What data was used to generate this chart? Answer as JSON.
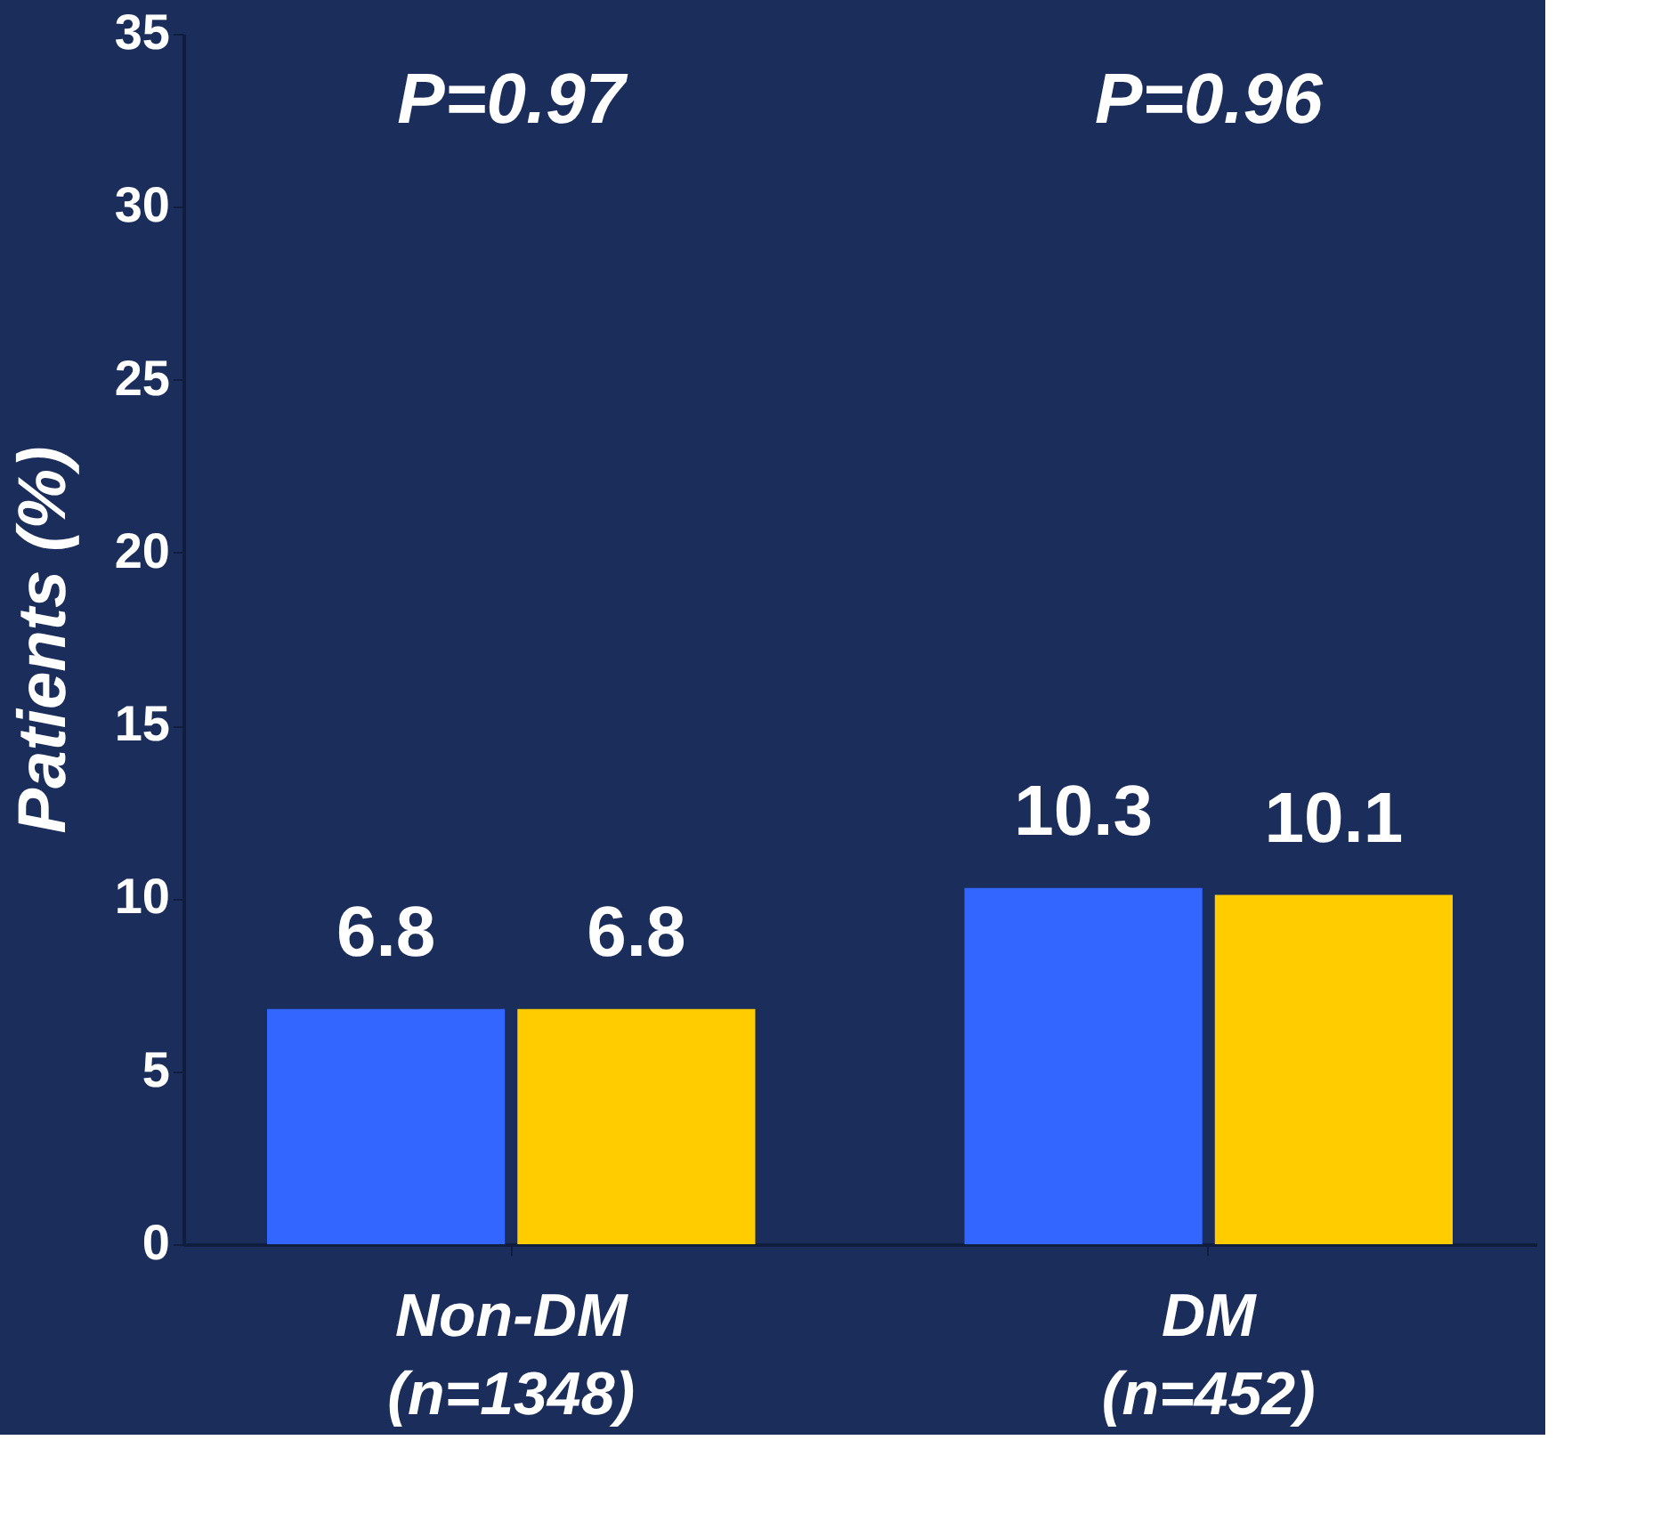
{
  "chart_data": {
    "type": "bar",
    "ylabel": "Patients (%)",
    "categories": [
      "Non-DM (n=1348)",
      "DM (n=452)"
    ],
    "series": [
      {
        "color": "#3366ff",
        "values": [
          6.8,
          10.3
        ]
      },
      {
        "color": "#ffcc00",
        "values": [
          6.8,
          10.1
        ]
      }
    ],
    "ylim": [
      0,
      35
    ],
    "yticks": [
      0,
      5,
      10,
      15,
      20,
      25,
      30,
      35
    ],
    "grid": false,
    "legend": false,
    "data_labels": true,
    "annotations": [
      "P=0.97",
      "P=0.96"
    ]
  }
}
